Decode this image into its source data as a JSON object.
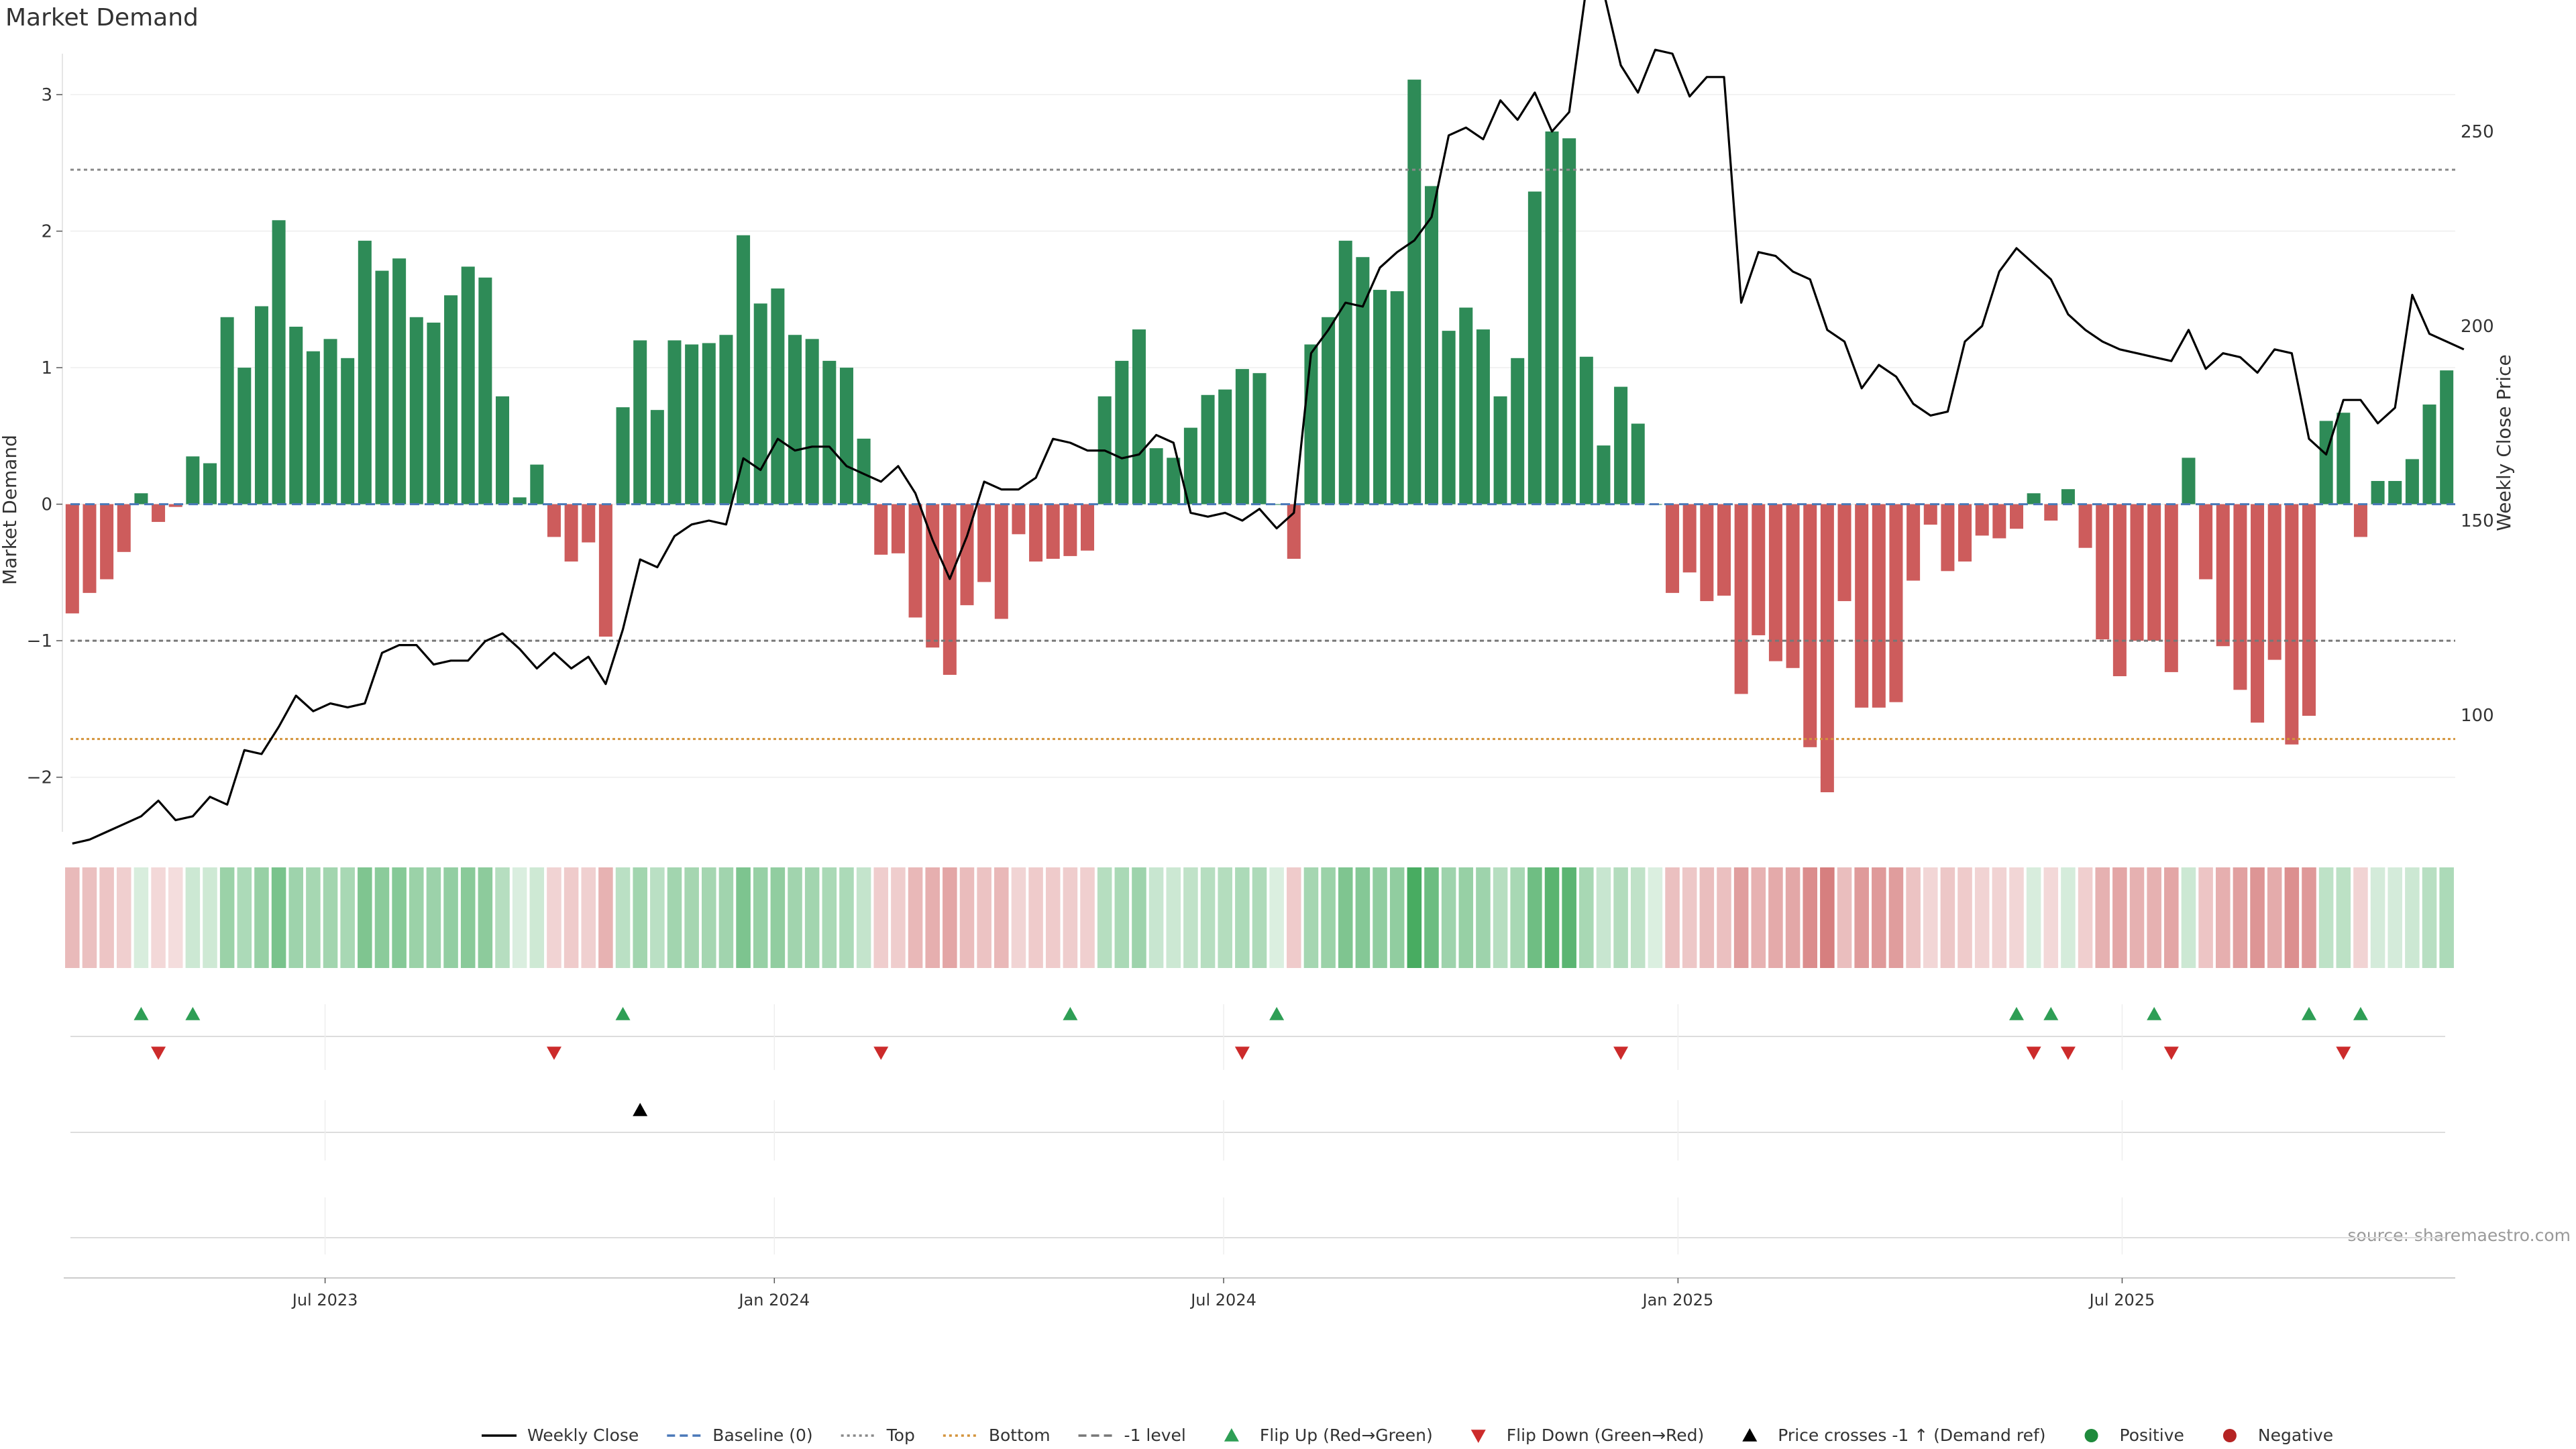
{
  "chart_data": {
    "type": "bar",
    "title": "Market Demand",
    "ylabel_left": "Market Demand",
    "ylabel_right": "Weekly Close Price",
    "source": "source: sharemaestro.com",
    "ylim_left": [
      -2.4,
      3.3
    ],
    "ylim_right": [
      70,
      270
    ],
    "left_ticks": [
      -2,
      -1,
      0,
      1,
      2,
      3
    ],
    "left_tick_labels": [
      "−2",
      "−1",
      "0",
      "1",
      "2",
      "3"
    ],
    "right_ticks": [
      100,
      150,
      200,
      250
    ],
    "right_tick_labels": [
      "100",
      "150",
      "200",
      "250"
    ],
    "x_week_range": [
      0,
      140
    ],
    "x_ticks": [
      {
        "label": "Jul 2023",
        "week": 15.3
      },
      {
        "label": "Jan 2024",
        "week": 41.6
      },
      {
        "label": "Jul 2024",
        "week": 67.9
      },
      {
        "label": "Jan 2025",
        "week": 94.5
      },
      {
        "label": "Jul 2025",
        "week": 120.5
      }
    ],
    "reference_lines": {
      "top": 2.45,
      "bottom": -1.72,
      "minus_one": -1.0,
      "baseline": 0
    },
    "demand": [
      -0.8,
      -0.65,
      -0.55,
      -0.35,
      0.08,
      -0.13,
      -0.02,
      0.35,
      0.3,
      1.37,
      1.0,
      1.45,
      2.08,
      1.3,
      1.12,
      1.21,
      1.07,
      1.93,
      1.71,
      1.8,
      1.37,
      1.33,
      1.53,
      1.74,
      1.66,
      0.79,
      0.05,
      0.29,
      -0.24,
      -0.42,
      -0.28,
      -0.97,
      0.71,
      1.2,
      0.69,
      1.2,
      1.17,
      1.18,
      1.24,
      1.97,
      1.47,
      1.58,
      1.24,
      1.21,
      1.05,
      1.0,
      0.48,
      -0.37,
      -0.36,
      -0.83,
      -1.05,
      -1.25,
      -0.74,
      -0.57,
      -0.84,
      -0.22,
      -0.42,
      -0.4,
      -0.38,
      -0.34,
      0.79,
      1.05,
      1.28,
      0.41,
      0.34,
      0.56,
      0.8,
      0.84,
      0.99,
      0.96,
      0.0,
      -0.4,
      1.17,
      1.37,
      1.93,
      1.81,
      1.57,
      1.56,
      3.11,
      2.33,
      1.27,
      1.44,
      1.28,
      0.79,
      1.07,
      2.29,
      2.73,
      2.68,
      1.08,
      0.43,
      0.86,
      0.59,
      0.0,
      -0.65,
      -0.5,
      -0.71,
      -0.67,
      -1.39,
      -0.96,
      -1.15,
      -1.2,
      -1.78,
      -2.11,
      -0.71,
      -1.49,
      -1.49,
      -1.45,
      -0.56,
      -0.15,
      -0.49,
      -0.42,
      -0.23,
      -0.25,
      -0.18,
      0.08,
      -0.12,
      0.11,
      -0.32,
      -0.99,
      -1.26,
      -1.0,
      -1.0,
      -1.23,
      0.34,
      -0.55,
      -1.04,
      -1.36,
      -1.6,
      -1.14,
      -1.76,
      -1.55,
      0.61,
      0.67,
      -0.24,
      0.17,
      0.17,
      0.33,
      0.73,
      0.98
    ],
    "price": [
      67,
      68,
      70,
      72,
      74,
      78,
      73,
      74,
      79,
      77,
      91,
      90,
      97,
      105,
      101,
      103,
      102,
      103,
      116,
      118,
      118,
      113,
      114,
      114,
      119,
      121,
      117,
      112,
      116,
      112,
      115,
      108,
      122,
      140,
      138,
      146,
      149,
      150,
      149,
      166,
      163,
      171,
      168,
      169,
      169,
      164,
      162,
      160,
      164,
      157,
      145,
      135,
      146,
      160,
      158,
      158,
      161,
      171,
      170,
      168,
      168,
      166,
      167,
      172,
      170,
      152,
      151,
      152,
      150,
      153,
      148,
      152,
      193,
      199,
      206,
      205,
      215,
      219,
      222,
      228,
      249,
      251,
      248,
      258,
      253,
      260,
      250,
      255,
      287,
      286,
      267,
      260,
      271,
      270,
      259,
      264,
      264,
      206,
      219,
      218,
      214,
      212,
      199,
      196,
      184,
      190,
      187,
      180,
      177,
      178,
      196,
      200,
      214,
      220,
      216,
      212,
      203,
      199,
      196,
      194,
      193,
      192,
      191,
      199,
      189,
      193,
      192,
      188,
      194,
      193,
      171,
      167,
      181,
      181,
      175,
      179,
      208,
      198,
      196,
      194
    ],
    "flip_up_weeks": [
      4,
      7,
      32,
      58,
      70,
      113,
      115,
      121,
      130,
      133
    ],
    "flip_down_weeks": [
      5,
      28,
      47,
      68,
      90,
      114,
      116,
      122,
      132
    ],
    "price_cross_weeks": [
      33
    ]
  },
  "legend": [
    {
      "label": "Weekly Close",
      "symbol": "solid-line",
      "color": "#000000"
    },
    {
      "label": "Baseline (0)",
      "symbol": "dashed-line",
      "color": "#4a78b8"
    },
    {
      "label": "Top",
      "symbol": "dotted-line",
      "color": "#888888"
    },
    {
      "label": "Bottom",
      "symbol": "dotted-line",
      "color": "#d4943c"
    },
    {
      "label": "-1 level",
      "symbol": "dashed-line",
      "color": "#777777"
    },
    {
      "label": "Flip Up (Red→Green)",
      "symbol": "triangle-up",
      "color": "#2e9e55"
    },
    {
      "label": "Flip Down (Green→Red)",
      "symbol": "triangle-down",
      "color": "#cc2b2b"
    },
    {
      "label": "Price crosses -1 ↑ (Demand ref)",
      "symbol": "triangle-up",
      "color": "#000000"
    },
    {
      "label": "Positive",
      "symbol": "circle",
      "color": "#1f8a3c"
    },
    {
      "label": "Negative",
      "symbol": "circle",
      "color": "#b52323"
    }
  ],
  "colors": {
    "positive_bar": "#2e8b57",
    "negative_bar": "#cd5c5c",
    "flip_up": "#2e9e55",
    "flip_down": "#cc2b2b",
    "heat_positive": "#3aa655",
    "heat_negative": "#c44545"
  }
}
